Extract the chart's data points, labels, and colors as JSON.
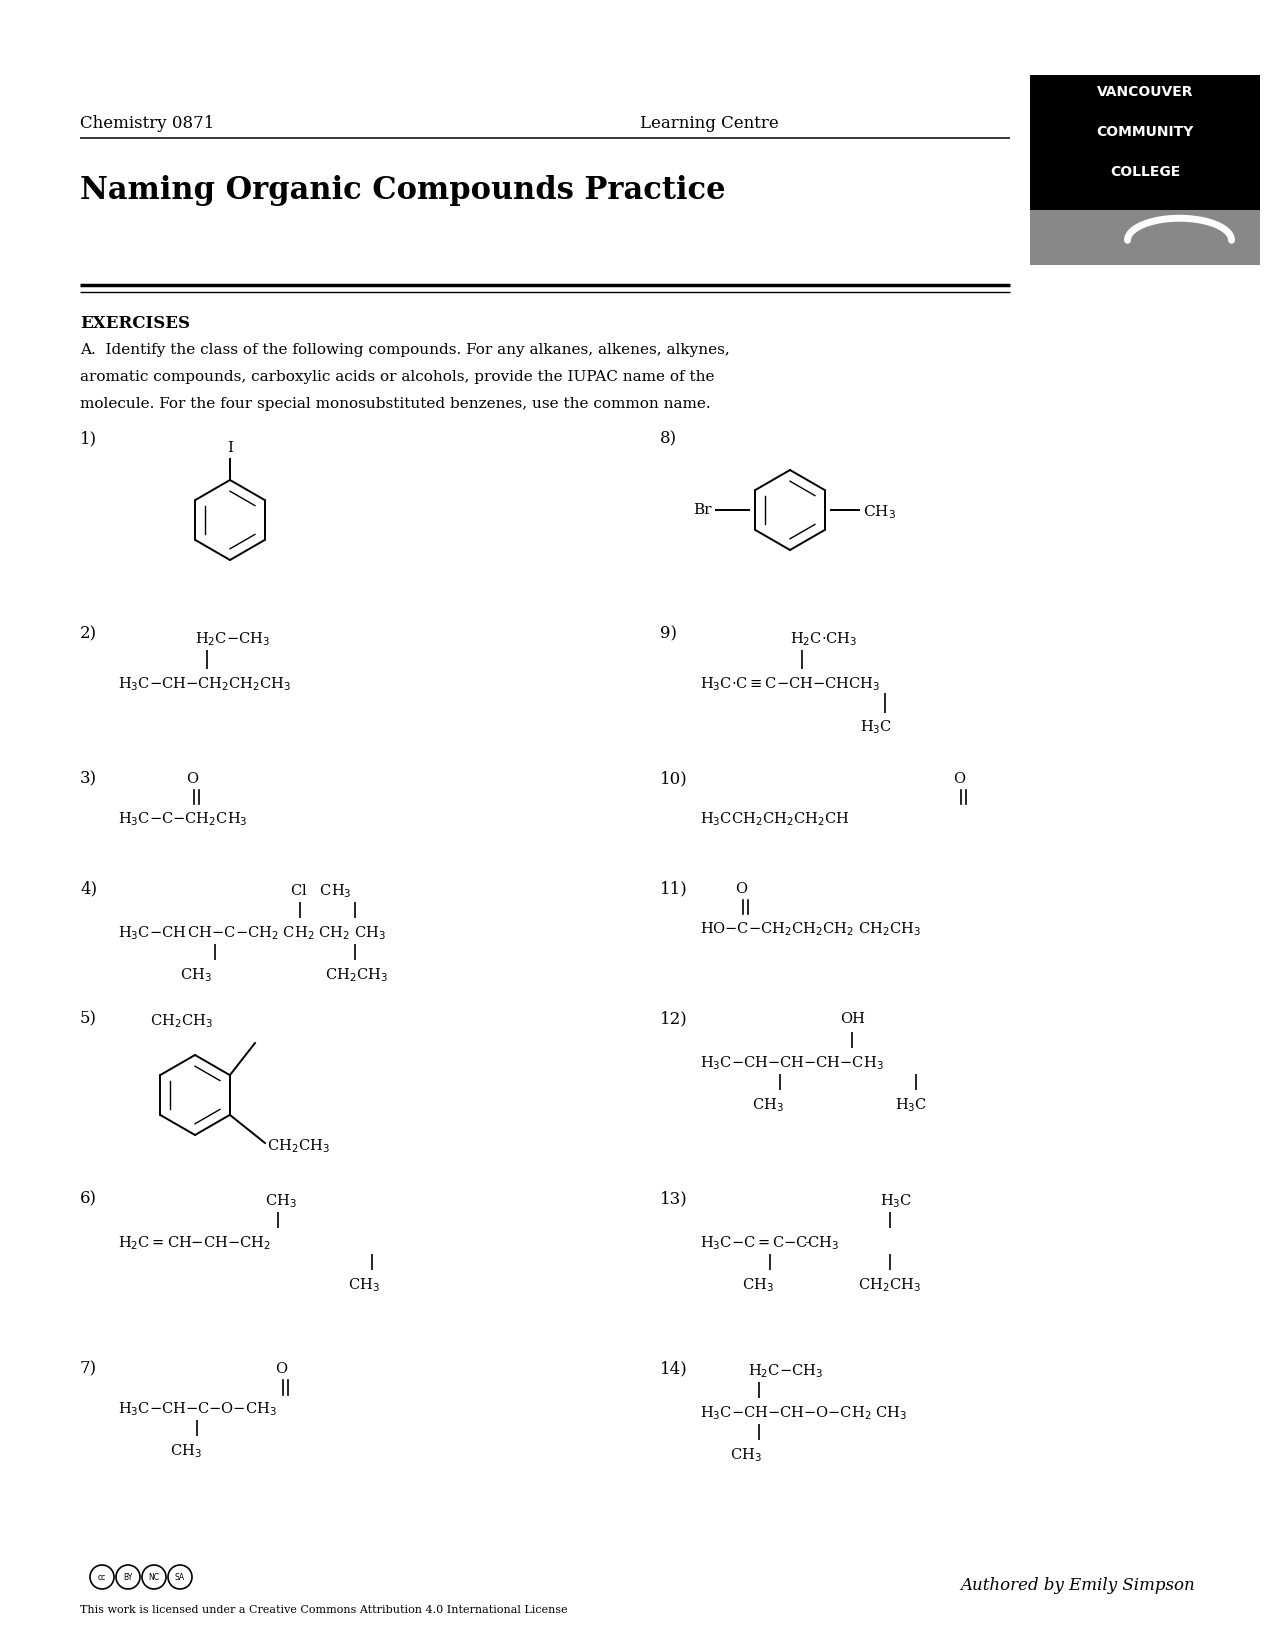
{
  "title": "Naming Organic Compounds Practice",
  "header_left": "Chemistry 0871",
  "header_right": "Learning Centre",
  "vcc_line1": "VANCOUVER",
  "vcc_line2": "COMMUNITY",
  "vcc_line3": "COLLEGE",
  "exercises_header": "EXERCISES",
  "exercises_line1": "A.  Identify the class of the following compounds. For any alkanes, alkenes, alkynes,",
  "exercises_line2": "aromatic compounds, carboxylic acids or alcohols, provide the IUPAC name of the",
  "exercises_line3": "molecule. For the four special monosubstituted benzenes, use the common name.",
  "footer_author": "Authored by Emily Simpson",
  "footer_license": "This work is licensed under a Creative Commons Attribution 4.0 International License",
  "bg_color": "#ffffff"
}
